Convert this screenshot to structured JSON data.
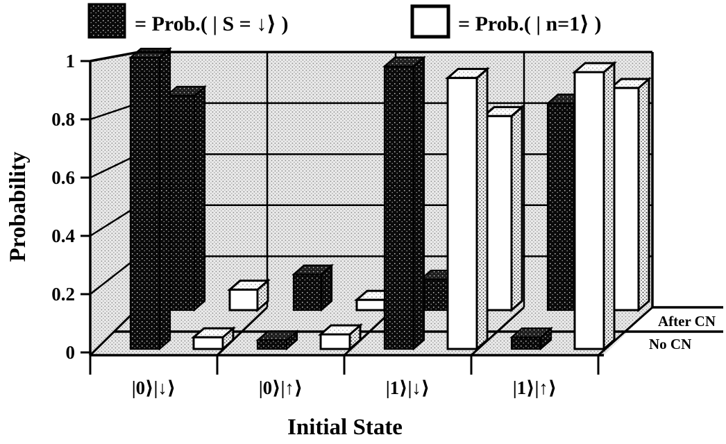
{
  "figure": {
    "kind": "scanned 3D bar chart figure",
    "caption": ""
  },
  "legend": {
    "items": [
      {
        "swatch": "dark-hatched-square",
        "label": "= Prob.( | S = ↓⟩ )"
      },
      {
        "swatch": "white-square",
        "label": "= Prob.( | n=1⟩ )"
      }
    ]
  },
  "chart_data": {
    "type": "bar",
    "projection": "3d",
    "title": "",
    "xlabel": "Initial State",
    "ylabel": "Probability",
    "ylim": [
      0,
      1
    ],
    "grid": true,
    "legend_position": "top",
    "ytick_values": [
      0,
      0.2,
      0.4,
      0.6,
      0.8,
      1
    ],
    "ytick_labels": [
      "0",
      "0.2",
      "0.4",
      "0.6",
      "0.8",
      "1"
    ],
    "categories": [
      "|0⟩|↓⟩",
      "|0⟩|↑⟩",
      "|1⟩|↓⟩",
      "|1⟩|↑⟩"
    ],
    "depth_rows": [
      "No CN",
      "After CN"
    ],
    "series": [
      {
        "name": "Prob.( | S = ↓⟩ )",
        "style": "dark-hatched",
        "values": {
          "No CN": [
            1.0,
            0.03,
            0.97,
            0.04
          ],
          "After CN": [
            0.84,
            0.14,
            0.12,
            0.81
          ]
        }
      },
      {
        "name": "Prob.( | n=1⟩ )",
        "style": "white",
        "values": {
          "No CN": [
            0.04,
            0.05,
            0.93,
            0.95
          ],
          "After CN": [
            0.08,
            0.04,
            0.76,
            0.87
          ]
        }
      }
    ]
  },
  "colors": {
    "ink": "#000000",
    "wall_stipple_bg": "#ebebeb",
    "wall_stipple_dot": "#8f8f8f",
    "paper": "#ffffff"
  }
}
